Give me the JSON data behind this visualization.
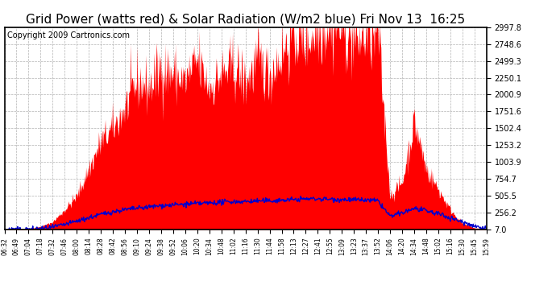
{
  "title": "Grid Power (watts red) & Solar Radiation (W/m2 blue) Fri Nov 13  16:25",
  "copyright": "Copyright 2009 Cartronics.com",
  "yticks": [
    7.0,
    256.2,
    505.5,
    754.7,
    1003.9,
    1253.2,
    1502.4,
    1751.6,
    2000.9,
    2250.1,
    2499.3,
    2748.6,
    2997.8
  ],
  "ymin": 7.0,
  "ymax": 2997.8,
  "bg_color": "#ffffff",
  "plot_bg_color": "#ffffff",
  "grid_color": "#aaaaaa",
  "red_color": "#ff0000",
  "blue_color": "#0000cc",
  "title_fontsize": 11,
  "copyright_fontsize": 7,
  "time_labels": [
    "06:32",
    "06:49",
    "07:04",
    "07:18",
    "07:32",
    "07:46",
    "08:00",
    "08:14",
    "08:28",
    "08:42",
    "08:56",
    "09:10",
    "09:24",
    "09:38",
    "09:52",
    "10:06",
    "10:20",
    "10:34",
    "10:48",
    "11:02",
    "11:16",
    "11:30",
    "11:44",
    "11:58",
    "12:13",
    "12:27",
    "12:41",
    "12:55",
    "13:09",
    "13:23",
    "13:37",
    "13:52",
    "14:06",
    "14:20",
    "14:34",
    "14:48",
    "15:02",
    "15:16",
    "15:30",
    "15:45",
    "15:59"
  ]
}
